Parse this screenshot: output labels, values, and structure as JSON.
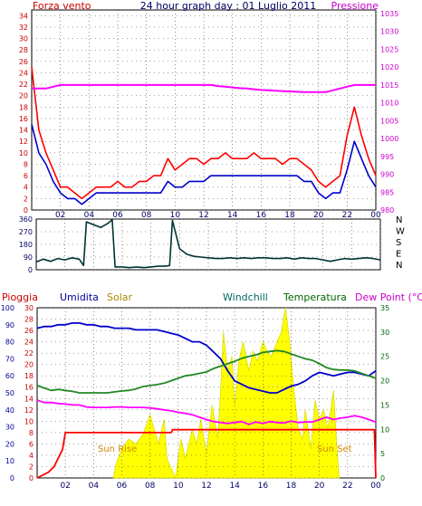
{
  "colors": {
    "wind": "#ff0000",
    "gust": "#0000cc",
    "pressure": "#ff00ff",
    "direction": "#003333",
    "rain": "#ff0000",
    "humidity": "#0000cc",
    "solar": "#ffff00",
    "temperature": "#228822",
    "dewpoint": "#ff00ff",
    "suntext": "#cc8800",
    "grid": "#444444"
  },
  "chart_data": [
    {
      "type": "line",
      "title": "24 hour graph day : 01 Luglio 2011",
      "left_label": "Forza vento",
      "right_label": "Pressione",
      "x_ticks": [
        "02",
        "04",
        "06",
        "08",
        "10",
        "12",
        "14",
        "16",
        "18",
        "20",
        "22",
        "00"
      ],
      "y_left_ticks": [
        "0",
        "2",
        "4",
        "6",
        "8",
        "10",
        "12",
        "14",
        "16",
        "18",
        "20",
        "22",
        "24",
        "26",
        "28",
        "30",
        "32",
        "34"
      ],
      "y_right_ticks": [
        "980",
        "985",
        "990",
        "995",
        "1000",
        "1005",
        "1010",
        "1015",
        "1020",
        "1025",
        "1030",
        "1035"
      ],
      "ylim_left": [
        0,
        35
      ],
      "ylim_right": [
        980,
        1036
      ],
      "x_hours": [
        0,
        0.5,
        1,
        1.5,
        2,
        2.5,
        3,
        3.5,
        4,
        4.5,
        5,
        5.5,
        6,
        6.5,
        7,
        7.5,
        8,
        8.5,
        9,
        9.5,
        10,
        10.5,
        11,
        11.5,
        12,
        12.5,
        13,
        13.5,
        14,
        14.5,
        15,
        15.5,
        16,
        16.5,
        17,
        17.5,
        18,
        18.5,
        19,
        19.5,
        20,
        20.5,
        21,
        21.5,
        22,
        22.5,
        23,
        23.5,
        24
      ],
      "series": [
        {
          "name": "Forza vento",
          "axis": "left",
          "values": [
            25,
            14,
            10,
            7,
            4,
            4,
            3,
            2,
            3,
            4,
            4,
            4,
            5,
            4,
            4,
            5,
            5,
            6,
            6,
            9,
            7,
            8,
            9,
            9,
            8,
            9,
            9,
            10,
            9,
            9,
            9,
            10,
            9,
            9,
            9,
            8,
            9,
            9,
            8,
            7,
            5,
            4,
            5,
            6,
            13,
            18,
            13,
            9,
            6
          ]
        },
        {
          "name": "",
          "axis": "left",
          "values": [
            15,
            10,
            8,
            5,
            3,
            2,
            2,
            1,
            2,
            3,
            3,
            3,
            3,
            3,
            3,
            3,
            3,
            3,
            3,
            5,
            4,
            4,
            5,
            5,
            5,
            6,
            6,
            6,
            6,
            6,
            6,
            6,
            6,
            6,
            6,
            6,
            6,
            6,
            5,
            5,
            3,
            2,
            3,
            3,
            7,
            12,
            9,
            6,
            4
          ]
        },
        {
          "name": "Pressione",
          "axis": "right",
          "values": [
            1014,
            1014,
            1014,
            1014.5,
            1015,
            1015,
            1015,
            1015,
            1015,
            1015,
            1015,
            1015,
            1015,
            1015,
            1015,
            1015,
            1015,
            1015,
            1015,
            1015,
            1015,
            1015,
            1015,
            1015,
            1015,
            1015,
            1014.7,
            1014.5,
            1014.3,
            1014.1,
            1014,
            1013.8,
            1013.6,
            1013.5,
            1013.4,
            1013.3,
            1013.2,
            1013.1,
            1013,
            1013,
            1013,
            1013,
            1013.5,
            1014,
            1014.5,
            1015,
            1015,
            1015,
            1015
          ]
        }
      ]
    },
    {
      "type": "line",
      "x_ticks": [
        "02",
        "04",
        "06",
        "08",
        "10",
        "12",
        "14",
        "16",
        "18",
        "20",
        "22",
        "00"
      ],
      "y_ticks": [
        "0",
        "90",
        "180",
        "270",
        "360"
      ],
      "ylim": [
        0,
        360
      ],
      "right_letters": [
        "N",
        "W",
        "S",
        "E",
        "N"
      ],
      "x_hours": [
        0,
        0.5,
        1,
        1.5,
        2,
        2.5,
        3,
        3.3,
        3.5,
        4,
        4.5,
        5,
        5.3,
        5.5,
        6,
        6.5,
        7,
        7.5,
        8,
        8.5,
        9,
        9.3,
        9.5,
        10,
        10.5,
        11,
        11.5,
        12,
        12.5,
        13,
        13.5,
        14,
        14.5,
        15,
        15.5,
        16,
        16.5,
        17,
        17.5,
        18,
        18.5,
        19,
        19.5,
        20,
        20.5,
        21,
        21.5,
        22,
        22.5,
        23,
        23.5,
        24
      ],
      "series": [
        {
          "name": "",
          "values": [
            55,
            75,
            60,
            80,
            70,
            85,
            75,
            30,
            340,
            320,
            300,
            330,
            355,
            20,
            20,
            15,
            20,
            15,
            20,
            25,
            25,
            30,
            350,
            150,
            110,
            95,
            90,
            85,
            80,
            80,
            85,
            80,
            85,
            80,
            85,
            85,
            80,
            80,
            85,
            75,
            85,
            80,
            80,
            70,
            60,
            70,
            80,
            75,
            80,
            85,
            80,
            70
          ]
        }
      ]
    },
    {
      "type": "line",
      "left_label_1": "Pioggia",
      "left_label_2": "Umidita",
      "left_label_3": "Solar",
      "right_label_1": "Windchill",
      "right_label_2": "Temperatura",
      "right_label_3": "Dew Point (°C)",
      "annotations": [
        "Sun Rise",
        "Sun Set"
      ],
      "x_ticks": [
        "02",
        "04",
        "06",
        "08",
        "10",
        "12",
        "14",
        "16",
        "18",
        "20",
        "22",
        "00"
      ],
      "y_humidity_ticks": [
        "0",
        "10",
        "20",
        "30",
        "40",
        "50",
        "60",
        "70",
        "80",
        "90",
        "100"
      ],
      "y_rain_ticks": [
        "0",
        "2",
        "4",
        "6",
        "8",
        "10",
        "12",
        "14",
        "16",
        "18",
        "20",
        "22",
        "24",
        "26",
        "28",
        "30"
      ],
      "y_temp_ticks": [
        "0",
        "5",
        "10",
        "15",
        "20",
        "25",
        "30",
        "35"
      ],
      "x_hours": [
        0,
        0.5,
        1,
        1.5,
        2,
        2.5,
        3,
        3.5,
        4,
        4.5,
        5,
        5.5,
        6,
        6.5,
        7,
        7.5,
        8,
        8.5,
        9,
        9.5,
        10,
        10.5,
        11,
        11.5,
        12,
        12.5,
        13,
        13.5,
        14,
        14.5,
        15,
        15.5,
        16,
        16.5,
        17,
        17.5,
        18,
        18.5,
        19,
        19.5,
        20,
        20.5,
        21,
        21.5,
        22,
        22.5,
        23,
        23.5,
        24
      ],
      "series": [
        {
          "name": "Umidita",
          "axis": "humidity",
          "values": [
            88,
            89,
            89,
            90,
            90,
            91,
            91,
            90,
            90,
            89,
            89,
            88,
            88,
            88,
            87,
            87,
            87,
            87,
            86,
            85,
            84,
            82,
            80,
            80,
            78,
            74,
            70,
            63,
            57,
            55,
            53,
            52,
            51,
            50,
            50,
            52,
            54,
            55,
            57,
            60,
            62,
            61,
            60,
            61,
            62,
            62,
            61,
            60,
            63
          ]
        },
        {
          "name": "Temperatura",
          "axis": "temp",
          "values": [
            19,
            18.5,
            18,
            18.2,
            18,
            17.8,
            17.5,
            17.5,
            17.5,
            17.5,
            17.5,
            17.7,
            17.9,
            18,
            18.3,
            18.8,
            19,
            19.2,
            19.5,
            20,
            20.5,
            21,
            21.2,
            21.5,
            21.8,
            22.5,
            23,
            23.5,
            24,
            24.6,
            25,
            25.3,
            25.8,
            26,
            26.2,
            26,
            25.5,
            25,
            24.5,
            24.2,
            23.5,
            22.7,
            22.3,
            22.2,
            22.2,
            22,
            21.5,
            21,
            20.5
          ]
        },
        {
          "name": "Dew Point (°C)",
          "axis": "temp",
          "values": [
            16,
            15.5,
            15.5,
            15.3,
            15.2,
            15,
            15,
            14.6,
            14.5,
            14.5,
            14.5,
            14.6,
            14.6,
            14.5,
            14.5,
            14.5,
            14.4,
            14.2,
            14,
            13.8,
            13.5,
            13.3,
            13,
            12.5,
            12,
            11.6,
            11.4,
            11.2,
            11.4,
            11.6,
            11,
            11.5,
            11.2,
            11.6,
            11.4,
            11.3,
            11.7,
            11.4,
            11.5,
            11.5,
            12,
            12.5,
            12,
            12.3,
            12.5,
            12.8,
            12.5,
            12,
            11.5
          ]
        },
        {
          "name": "Pioggia",
          "axis": "rain",
          "x": [
            0,
            0.8,
            1.2,
            1.8,
            2,
            9.5,
            9.6,
            23.9,
            24
          ],
          "values": [
            0,
            1,
            2,
            5,
            8,
            8,
            8.5,
            8.5,
            0
          ]
        },
        {
          "name": "Solar",
          "axis": "temp",
          "x": [
            5.4,
            5.6,
            6,
            6.5,
            7,
            7.5,
            8,
            8.3,
            8.6,
            9,
            9.2,
            9.5,
            9.8,
            10.2,
            10.5,
            11,
            11.3,
            11.6,
            12,
            12.4,
            12.8,
            13,
            13.2,
            13.5,
            13.8,
            14,
            14.3,
            14.6,
            15,
            15.3,
            15.6,
            16,
            16.3,
            16.6,
            17,
            17.3,
            17.6,
            17.9,
            18.2,
            18.5,
            18.8,
            19,
            19.4,
            19.7,
            20,
            20.3,
            20.6,
            21,
            21.2,
            21.4
          ],
          "values": [
            0,
            3,
            6,
            8,
            7,
            9,
            13,
            10,
            7,
            12,
            4,
            2,
            0,
            8,
            4,
            10,
            7,
            12,
            5,
            15,
            8,
            18,
            30,
            22,
            25,
            15,
            24,
            28,
            22,
            26,
            24,
            28,
            26,
            25,
            28,
            30,
            35,
            28,
            18,
            10,
            8,
            14,
            6,
            16,
            12,
            14,
            10,
            18,
            8,
            0
          ]
        }
      ]
    }
  ]
}
